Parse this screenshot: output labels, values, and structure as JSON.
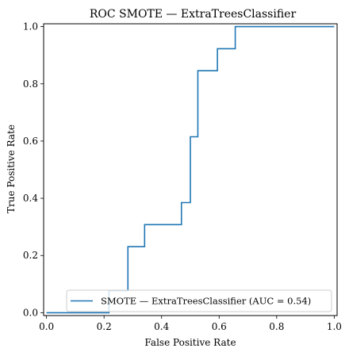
{
  "chart_data": {
    "type": "line",
    "title": "ROC SMOTE — ExtraTreesClassifier",
    "xlabel": "False Positive Rate",
    "ylabel": "True Positive Rate",
    "xlim": [
      -0.01,
      1.01
    ],
    "ylim": [
      -0.01,
      1.01
    ],
    "xticks": [
      "0.0",
      "0.2",
      "0.4",
      "0.6",
      "0.8",
      "1.0"
    ],
    "yticks": [
      "0.0",
      "0.2",
      "0.4",
      "0.6",
      "0.8",
      "1.0"
    ],
    "grid": false,
    "legend_position": "lower-right",
    "series": [
      {
        "name": "SMOTE — ExtraTreesClassifier (AUC = 0.54)",
        "color": "#1f77b4",
        "x": [
          0.0,
          0.217,
          0.217,
          0.283,
          0.283,
          0.341,
          0.341,
          0.469,
          0.469,
          0.5,
          0.5,
          0.526,
          0.526,
          0.594,
          0.594,
          0.656,
          0.656,
          1.0
        ],
        "y": [
          0.0,
          0.0,
          0.077,
          0.077,
          0.231,
          0.231,
          0.308,
          0.308,
          0.385,
          0.385,
          0.615,
          0.615,
          0.846,
          0.846,
          0.923,
          0.923,
          1.0,
          1.0
        ]
      }
    ]
  }
}
